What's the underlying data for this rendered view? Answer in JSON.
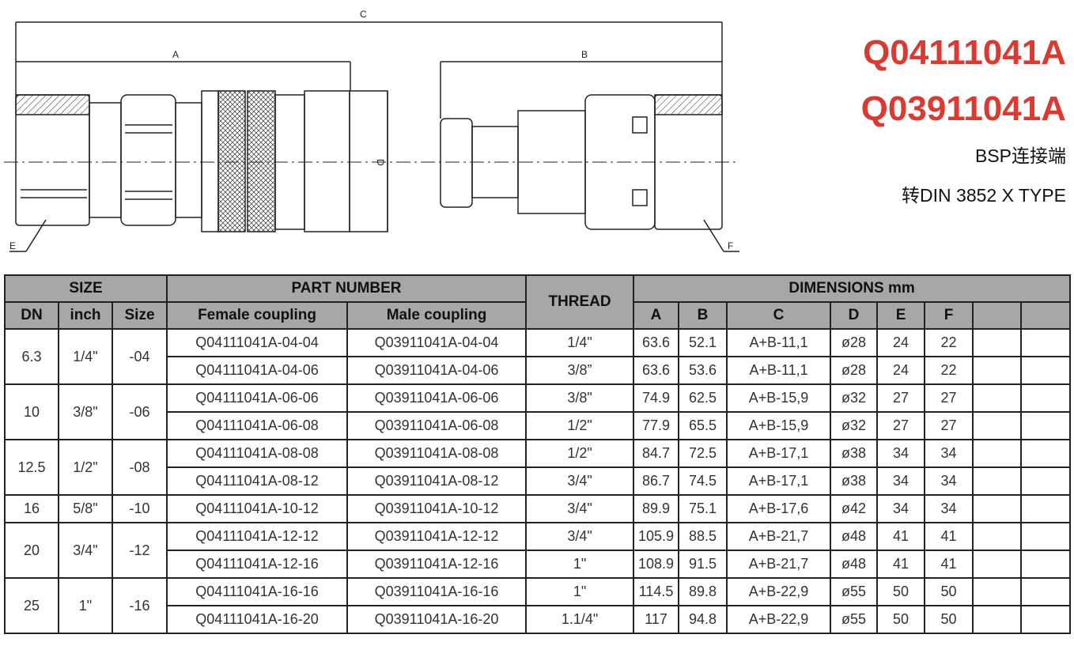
{
  "header": {
    "female_code": "Q04111041A",
    "male_code": "Q03911041A",
    "subtitle_1": "BSP连接端",
    "subtitle_2": "转DIN 3852 X TYPE",
    "accent_color": "#d93a32"
  },
  "drawing": {
    "labels": {
      "A": "A",
      "B": "B",
      "C": "C",
      "D": "D",
      "E": "E",
      "F": "F"
    }
  },
  "table": {
    "group_headers": {
      "size": "SIZE",
      "part_number": "PART NUMBER",
      "thread": "THREAD",
      "dimensions": "DIMENSIONS mm"
    },
    "columns": {
      "dn": "DN",
      "inch": "inch",
      "size": "Size",
      "female": "Female coupling",
      "male": "Male coupling",
      "A": "A",
      "B": "B",
      "C": "C",
      "D": "D",
      "E": "E",
      "F": "F"
    },
    "groups": [
      {
        "dn": "6.3",
        "inch": "1/4\"",
        "size": "-04",
        "rows": [
          {
            "female": "Q04111041A-04-04",
            "male": "Q03911041A-04-04",
            "thread": "1/4\"",
            "A": "63.6",
            "B": "52.1",
            "C": "A+B-11,1",
            "D": "ø28",
            "E": "24",
            "F": "22"
          },
          {
            "female": "Q04111041A-04-06",
            "male": "Q03911041A-04-06",
            "thread": "3/8”",
            "A": "63.6",
            "B": "53.6",
            "C": "A+B-11,1",
            "D": "ø28",
            "E": "24",
            "F": "22"
          }
        ]
      },
      {
        "dn": "10",
        "inch": "3/8\"",
        "size": "-06",
        "rows": [
          {
            "female": "Q04111041A-06-06",
            "male": "Q03911041A-06-06",
            "thread": "3/8\"",
            "A": "74.9",
            "B": "62.5",
            "C": "A+B-15,9",
            "D": "ø32",
            "E": "27",
            "F": "27"
          },
          {
            "female": "Q04111041A-06-08",
            "male": "Q03911041A-06-08",
            "thread": "1/2\"",
            "A": "77.9",
            "B": "65.5",
            "C": "A+B-15,9",
            "D": "ø32",
            "E": "27",
            "F": "27"
          }
        ]
      },
      {
        "dn": "12.5",
        "inch": "1/2\"",
        "size": "-08",
        "rows": [
          {
            "female": "Q04111041A-08-08",
            "male": "Q03911041A-08-08",
            "thread": "1/2\"",
            "A": "84.7",
            "B": "72.5",
            "C": "A+B-17,1",
            "D": "ø38",
            "E": "34",
            "F": "34"
          },
          {
            "female": "Q04111041A-08-12",
            "male": "Q03911041A-08-12",
            "thread": "3/4\"",
            "A": "86.7",
            "B": "74.5",
            "C": "A+B-17,1",
            "D": "ø38",
            "E": "34",
            "F": "34"
          }
        ]
      },
      {
        "dn": "16",
        "inch": "5/8\"",
        "size": "-10",
        "rows": [
          {
            "female": "Q04111041A-10-12",
            "male": "Q03911041A-10-12",
            "thread": "3/4\"",
            "A": "89.9",
            "B": "75.1",
            "C": "A+B-17,6",
            "D": "ø42",
            "E": "34",
            "F": "34"
          }
        ]
      },
      {
        "dn": "20",
        "inch": "3/4\"",
        "size": "-12",
        "rows": [
          {
            "female": "Q04111041A-12-12",
            "male": "Q03911041A-12-12",
            "thread": "3/4\"",
            "A": "105.9",
            "B": "88.5",
            "C": "A+B-21,7",
            "D": "ø48",
            "E": "41",
            "F": "41"
          },
          {
            "female": "Q04111041A-12-16",
            "male": "Q03911041A-12-16",
            "thread": "1\"",
            "A": "108.9",
            "B": "91.5",
            "C": "A+B-21,7",
            "D": "ø48",
            "E": "41",
            "F": "41"
          }
        ]
      },
      {
        "dn": "25",
        "inch": "1\"",
        "size": "-16",
        "rows": [
          {
            "female": "Q04111041A-16-16",
            "male": "Q03911041A-16-16",
            "thread": "1\"",
            "A": "114.5",
            "B": "89.8",
            "C": "A+B-22,9",
            "D": "ø55",
            "E": "50",
            "F": "50"
          },
          {
            "female": "Q04111041A-16-20",
            "male": "Q03911041A-16-20",
            "thread": "1.1/4\"",
            "A": "117",
            "B": "94.8",
            "C": "A+B-22,9",
            "D": "ø55",
            "E": "50",
            "F": "50"
          }
        ]
      }
    ]
  }
}
